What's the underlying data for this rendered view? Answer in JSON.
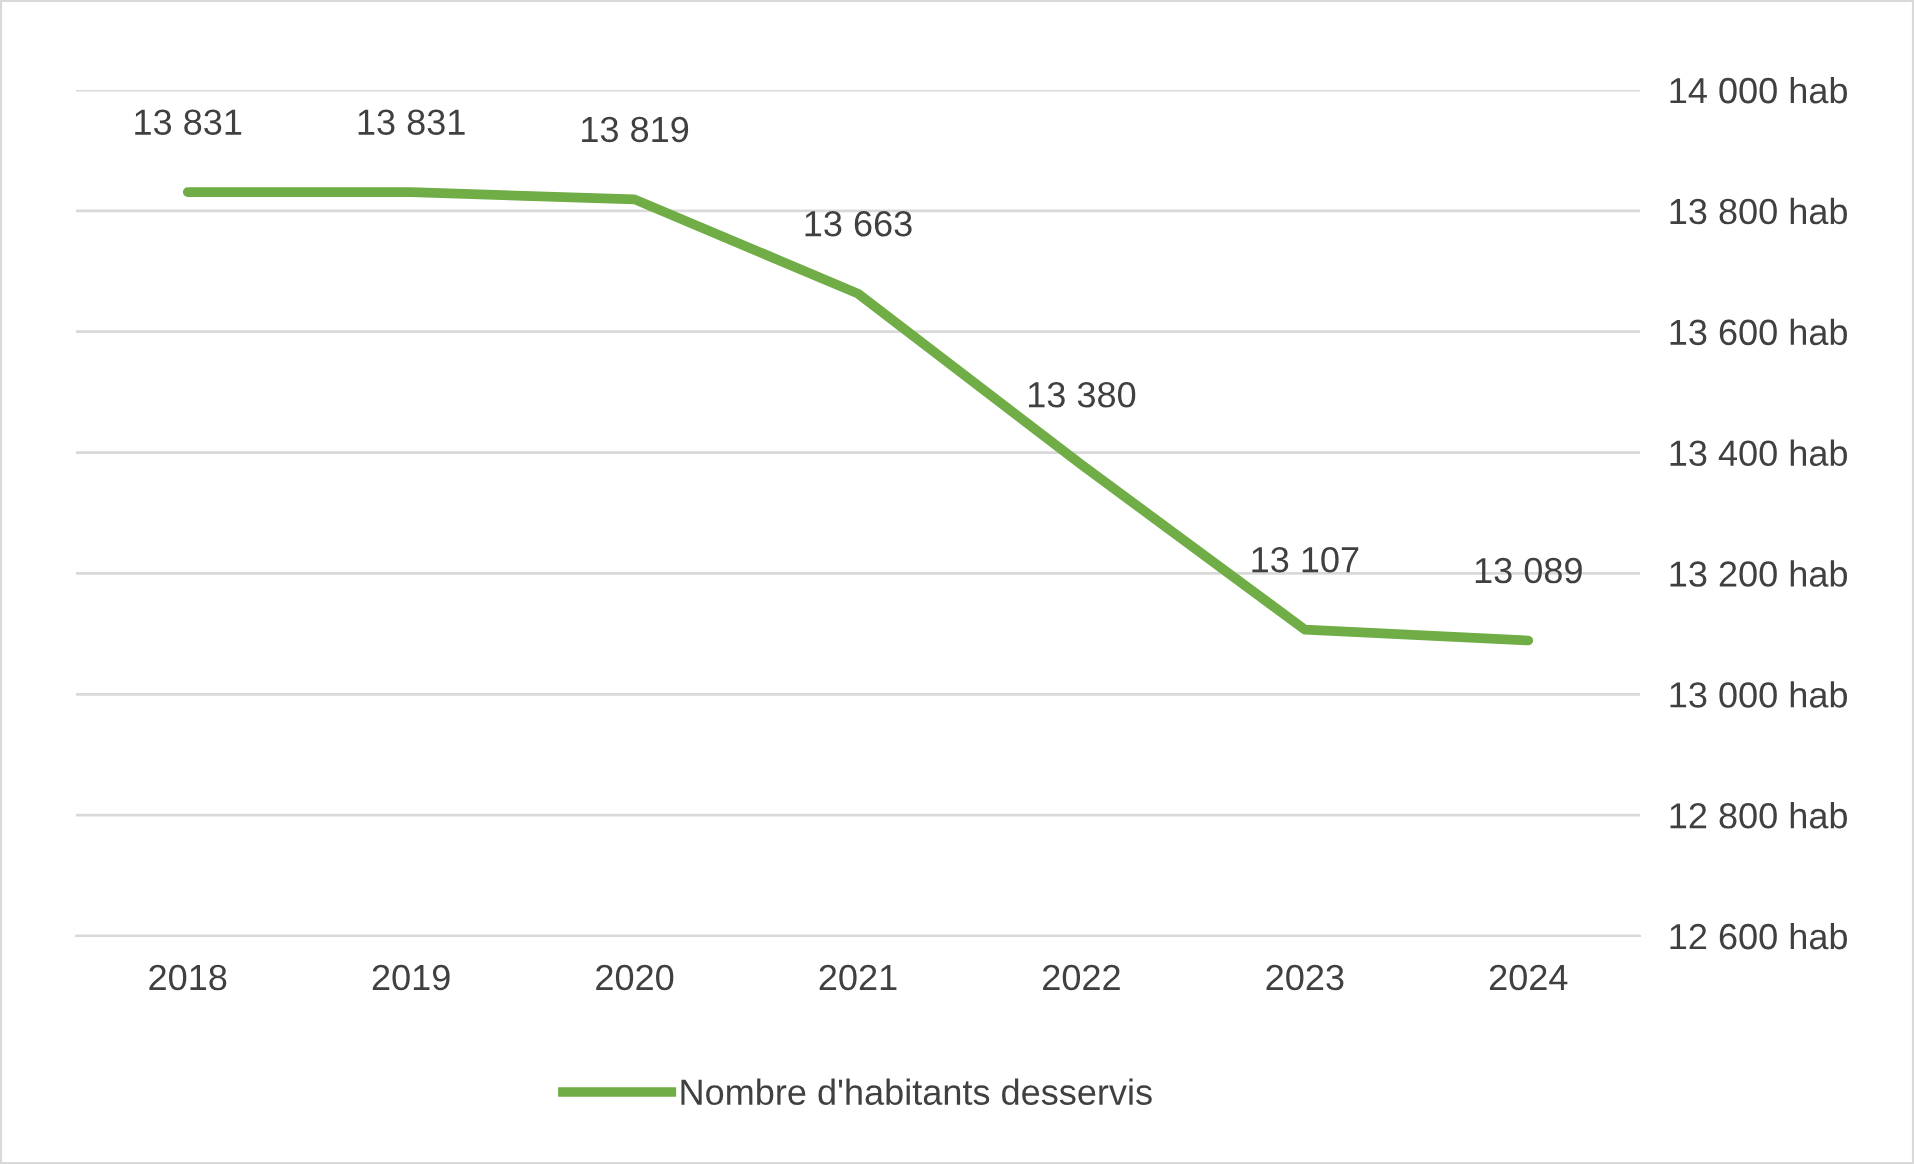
{
  "chart_data": {
    "type": "line",
    "categories": [
      "2018",
      "2019",
      "2020",
      "2021",
      "2022",
      "2023",
      "2024"
    ],
    "series": [
      {
        "name": "Nombre d'habitants desservis",
        "color": "#70ad47",
        "values": [
          13831,
          13831,
          13819,
          13663,
          13380,
          13107,
          13089
        ],
        "value_labels": [
          "13 831",
          "13 831",
          "13 819",
          "13 663",
          "13 380",
          "13 107",
          "13 089"
        ]
      }
    ],
    "ylim": [
      12600,
      14000
    ],
    "yticks": [
      {
        "value": 12600,
        "label": "12 600 hab"
      },
      {
        "value": 12800,
        "label": "12 800 hab"
      },
      {
        "value": 13000,
        "label": "13 000 hab"
      },
      {
        "value": 13200,
        "label": "13 200 hab"
      },
      {
        "value": 13400,
        "label": "13 400 hab"
      },
      {
        "value": 13600,
        "label": "13 600 hab"
      },
      {
        "value": 13800,
        "label": "13 800 hab"
      },
      {
        "value": 14000,
        "label": "14 000 hab"
      }
    ],
    "grid": "y",
    "legend": "bottom",
    "marker": "none",
    "line_style": "solid"
  }
}
